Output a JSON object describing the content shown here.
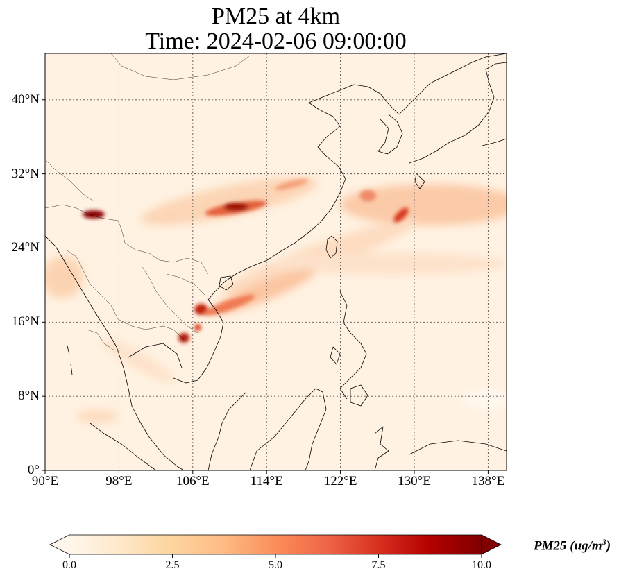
{
  "title_line1": "PM25 at 4km",
  "title_line2": "Time: 2024-02-06 09:00:00",
  "map": {
    "lon_range": [
      90,
      140
    ],
    "lat_range": [
      0,
      45
    ],
    "lat_ticks": [
      {
        "value": 40,
        "label": "40°N"
      },
      {
        "value": 32,
        "label": "32°N"
      },
      {
        "value": 24,
        "label": "24°N"
      },
      {
        "value": 16,
        "label": "16°N"
      },
      {
        "value": 8,
        "label": "8°N"
      },
      {
        "value": 0,
        "label": "0°"
      }
    ],
    "lon_ticks": [
      {
        "value": 90,
        "label": "90°E"
      },
      {
        "value": 98,
        "label": "98°E"
      },
      {
        "value": 106,
        "label": "106°E"
      },
      {
        "value": 114,
        "label": "114°E"
      },
      {
        "value": 122,
        "label": "122°E"
      },
      {
        "value": 130,
        "label": "130°E"
      },
      {
        "value": 138,
        "label": "138°E"
      }
    ],
    "gridlines": true,
    "background_color": "#fff2e2",
    "coastline_color": "#000000"
  },
  "colorbar": {
    "colormap": "OrRd",
    "range": [
      0.0,
      10.0
    ],
    "extend": "both",
    "ticks": [
      "0.0",
      "2.5",
      "5.0",
      "7.5",
      "10.0"
    ],
    "label_prefix": "PM25 (ug/m",
    "label_sup": "3",
    "label_suffix": ")",
    "colors": [
      "#fff7ec",
      "#fee8c8",
      "#fdd49e",
      "#fdbb84",
      "#fc8d59",
      "#ef6548",
      "#d7301f",
      "#b30000",
      "#7f0000"
    ]
  }
}
